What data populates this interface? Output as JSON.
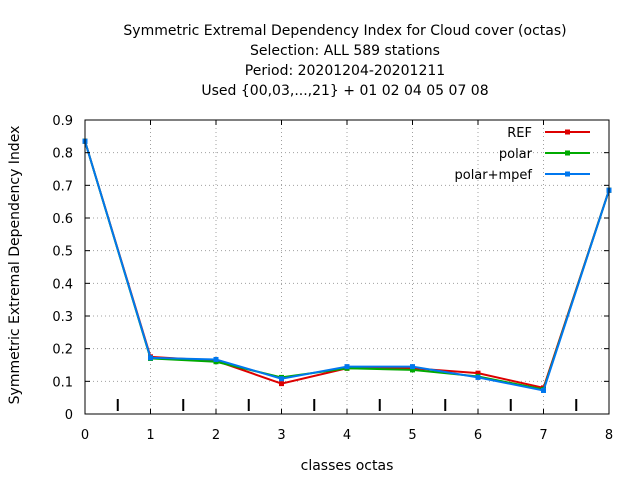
{
  "chart_data": {
    "type": "line",
    "title_lines": [
      "Symmetric Extremal Dependency Index  for Cloud cover (octas)",
      "Selection: ALL    589 stations",
      "Period: 20201204-20201211",
      "Used {00,03,...,21} + 01 02 04 05 07 08"
    ],
    "xlabel": "classes octas",
    "ylabel": "Symmetric Extremal Dependency Index",
    "xlim": [
      0,
      8
    ],
    "ylim": [
      0,
      0.9
    ],
    "x_ticks": [
      "0",
      "1",
      "2",
      "3",
      "4",
      "5",
      "6",
      "7",
      "8"
    ],
    "y_ticks": [
      "0",
      "0.1",
      "0.2",
      "0.3",
      "0.4",
      "0.5",
      "0.6",
      "0.7",
      "0.8",
      "0.9"
    ],
    "grid": true,
    "legend_position": "top-right",
    "x": [
      0,
      1,
      2,
      3,
      4,
      5,
      6,
      7,
      8
    ],
    "series": [
      {
        "name": "REF",
        "color": "#dd0000",
        "values": [
          0.835,
          0.175,
          0.163,
          0.093,
          0.14,
          0.14,
          0.125,
          0.08,
          0.685
        ]
      },
      {
        "name": "polar",
        "color": "#00aa00",
        "values": [
          0.835,
          0.17,
          0.16,
          0.112,
          0.14,
          0.135,
          0.115,
          0.075,
          0.685
        ]
      },
      {
        "name": "polar+mpef",
        "color": "#0077ee",
        "values": [
          0.835,
          0.172,
          0.167,
          0.108,
          0.145,
          0.145,
          0.112,
          0.072,
          0.685
        ]
      }
    ],
    "class_markers_x": [
      0.5,
      1.5,
      2.5,
      3.5,
      4.5,
      5.5,
      6.5,
      7.5
    ]
  }
}
